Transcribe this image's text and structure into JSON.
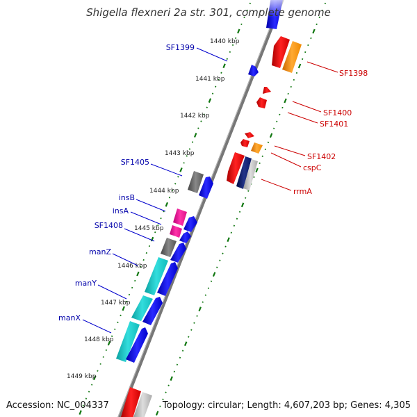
{
  "title": "Shigella flexneri 2a str. 301, complete genome",
  "footer": {
    "accession": "Accession: NC_004337",
    "topology": "Topology: circular; Length: 4,607,203 bp; Genes: 4,305"
  },
  "ticks": [
    "1440 kbp",
    "1441 kbp",
    "1442 kbp",
    "1443 kbp",
    "1444 kbp",
    "1445 kbp",
    "1446 kbp",
    "1447 kbp",
    "1448 kbp",
    "1449 kbp"
  ],
  "left_labels": [
    "SF1399",
    "SF1405",
    "insB",
    "insA",
    "SF1408",
    "manZ",
    "manY",
    "manX"
  ],
  "right_labels": [
    "SF1398",
    "SF1400",
    "SF1401",
    "SF1402",
    "cspC",
    "rrmA"
  ],
  "colors": {
    "forward_gene": "#0000ee",
    "reverse_gene": "#ee0000",
    "pseudogene": "#666666",
    "insertion": "#ee1199",
    "pts": "#11bbbb",
    "orange": "#ff8800",
    "rna_dark": "#0a1a66",
    "rna_light": "#bbbbbb",
    "left_label": "#0000aa",
    "right_label": "#cc0000",
    "ruler": "#117711",
    "backbone": "#777777"
  }
}
